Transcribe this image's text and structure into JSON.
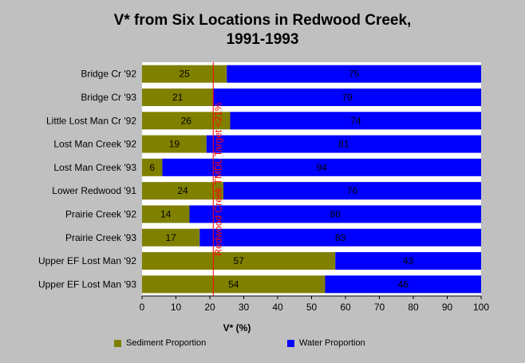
{
  "chart_data": {
    "type": "bar",
    "orientation": "horizontal",
    "stacked": true,
    "title": [
      "V* from Six Locations in Redwood Creek,",
      "1991-1993"
    ],
    "xlabel": "V* (%)",
    "ylabel": "",
    "xlim": [
      0,
      100
    ],
    "xticks": [
      0,
      10,
      20,
      30,
      40,
      50,
      60,
      70,
      80,
      90,
      100
    ],
    "categories": [
      "Bridge Cr '92",
      "Bridge Cr '93",
      "Little Lost Man Cr '92",
      "Lost Man Creek '92",
      "Lost Man Creek '93",
      "Lower Redwood '91",
      "Prairie Creek '92",
      "Prairie Creek '93",
      "Upper EF Lost Man '92",
      "Upper EF Lost Man '93"
    ],
    "series": [
      {
        "name": "Sediment Proportion",
        "color": "#808000",
        "values": [
          25,
          21,
          26,
          19,
          6,
          24,
          14,
          17,
          57,
          54
        ]
      },
      {
        "name": "Water Proportion",
        "color": "#0000ff",
        "values": [
          75,
          79,
          74,
          81,
          94,
          76,
          86,
          83,
          43,
          46
        ]
      }
    ],
    "reference_line": {
      "value": 21,
      "label": "Redwood Creek TMDL Target <21%",
      "color": "#ff0000"
    },
    "legend_position": "bottom",
    "grid": false
  }
}
